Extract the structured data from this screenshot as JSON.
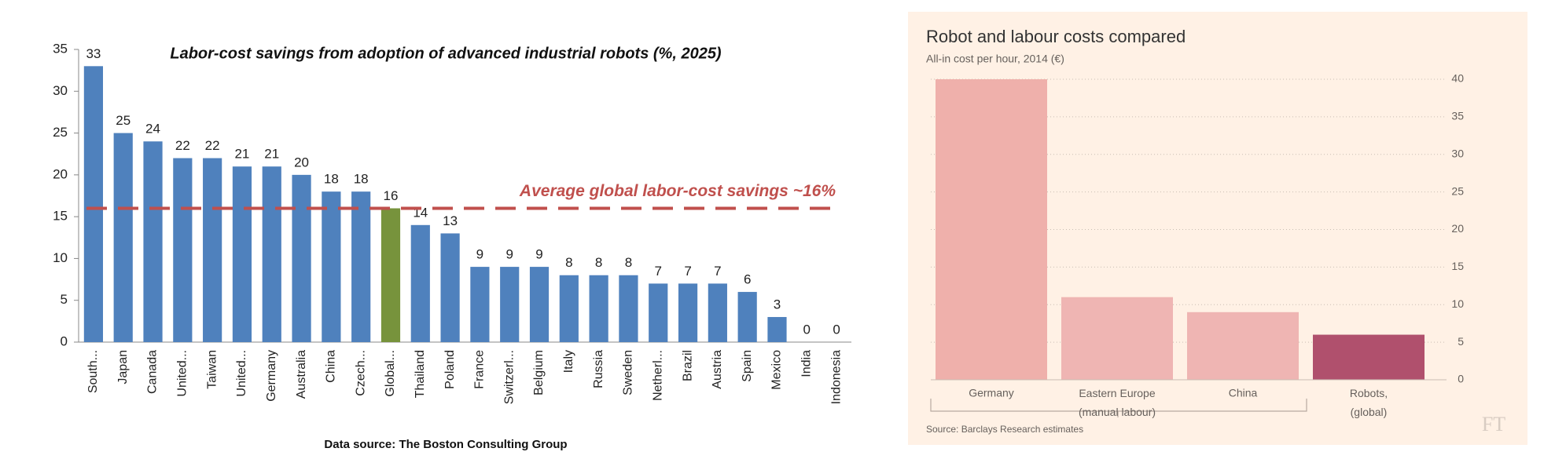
{
  "chart_data": [
    {
      "type": "bar",
      "title": "Labor-cost savings from adoption of advanced industrial robots (%, 2025)",
      "categories": [
        "South...",
        "Japan",
        "Canada",
        "United...",
        "Taiwan",
        "United...",
        "Germany",
        "Australia",
        "China",
        "Czech...",
        "Global...",
        "Thailand",
        "Poland",
        "France",
        "Switzerl...",
        "Belgium",
        "Italy",
        "Russia",
        "Sweden",
        "Netherl...",
        "Brazil",
        "Austria",
        "Spain",
        "Mexico",
        "India",
        "Indonesia"
      ],
      "values": [
        33,
        25,
        24,
        22,
        22,
        21,
        21,
        20,
        18,
        18,
        16,
        14,
        13,
        9,
        9,
        9,
        8,
        8,
        8,
        7,
        7,
        7,
        6,
        3,
        0,
        0
      ],
      "colors": [
        "#4f81bd",
        "#4f81bd",
        "#4f81bd",
        "#4f81bd",
        "#4f81bd",
        "#4f81bd",
        "#4f81bd",
        "#4f81bd",
        "#4f81bd",
        "#4f81bd",
        "#77933c",
        "#4f81bd",
        "#4f81bd",
        "#4f81bd",
        "#4f81bd",
        "#4f81bd",
        "#4f81bd",
        "#4f81bd",
        "#4f81bd",
        "#4f81bd",
        "#4f81bd",
        "#4f81bd",
        "#4f81bd",
        "#4f81bd",
        "#4f81bd",
        "#4f81bd"
      ],
      "ylim": [
        0,
        35
      ],
      "yticks": [
        0,
        5,
        10,
        15,
        20,
        25,
        30,
        35
      ],
      "grid": false,
      "reference_line": {
        "value": 16,
        "label": "Average global labor-cost savings ~16%",
        "color": "#c0504d"
      },
      "source": "Data source: The Boston Consulting Group"
    },
    {
      "type": "bar",
      "title": "Robot and labour costs compared",
      "subtitle": "All-in cost per hour, 2014 (€)",
      "categories": [
        "Germany",
        "Eastern Europe (manual labour)",
        "China",
        "Robots, (global)"
      ],
      "values": [
        40,
        11,
        9,
        6
      ],
      "colors": [
        "#efb0ab",
        "#efb5b3",
        "#efb5b3",
        "#b0506d"
      ],
      "ylim": [
        0,
        40
      ],
      "yticks": [
        0,
        5,
        10,
        15,
        20,
        25,
        30,
        35,
        40
      ],
      "grid": true,
      "source": "Source: Barclays Research estimates",
      "logo": "FT"
    }
  ]
}
